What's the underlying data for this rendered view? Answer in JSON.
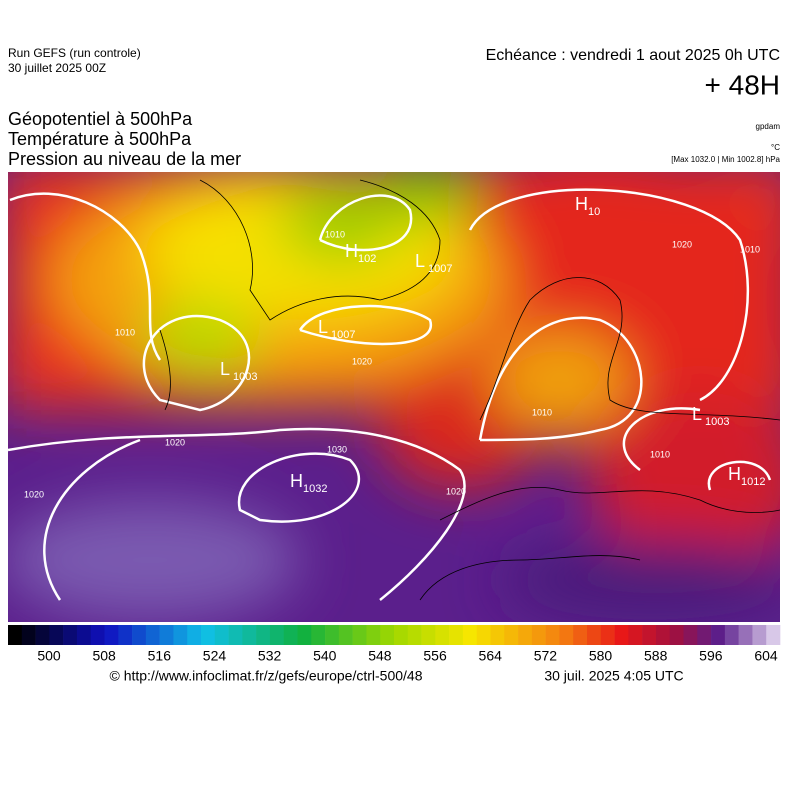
{
  "header": {
    "run": "Run GEFS (run controle)",
    "run_date": "30 juillet 2025 00Z",
    "valid": "Echéance : vendredi 1 aout 2025 0h UTC",
    "lead": "+ 48H",
    "fields": [
      "Géopotentiel à 500hPa",
      "Température à 500hPa",
      "Pression au niveau de la mer"
    ],
    "units": [
      "gpdam",
      "°C",
      "[Max 1032.0 | Min 1002.8] hPa"
    ]
  },
  "centers": [
    {
      "letter": "H",
      "value": "1032"
    },
    {
      "letter": "L",
      "value": "1003"
    },
    {
      "letter": "L",
      "value": "1007"
    },
    {
      "letter": "H",
      "value": "102"
    },
    {
      "letter": "L",
      "value": "1007"
    },
    {
      "letter": "H",
      "value": "10"
    },
    {
      "letter": "L",
      "value": "1003"
    },
    {
      "letter": "H",
      "value": "1012"
    }
  ],
  "contour_labels": [
    "1010",
    "1020",
    "1020",
    "1030",
    "1020",
    "1020",
    "1010",
    "1020",
    "1010",
    "1010",
    "1010"
  ],
  "colorbar": {
    "ticks": [
      500,
      508,
      516,
      524,
      532,
      540,
      548,
      556,
      564,
      572,
      580,
      588,
      596,
      604
    ]
  },
  "footer": {
    "source": "© http://www.infoclimat.fr/z/gefs/europe/ctrl-500/48",
    "generated": "30 juil. 2025  4:05 UTC"
  }
}
